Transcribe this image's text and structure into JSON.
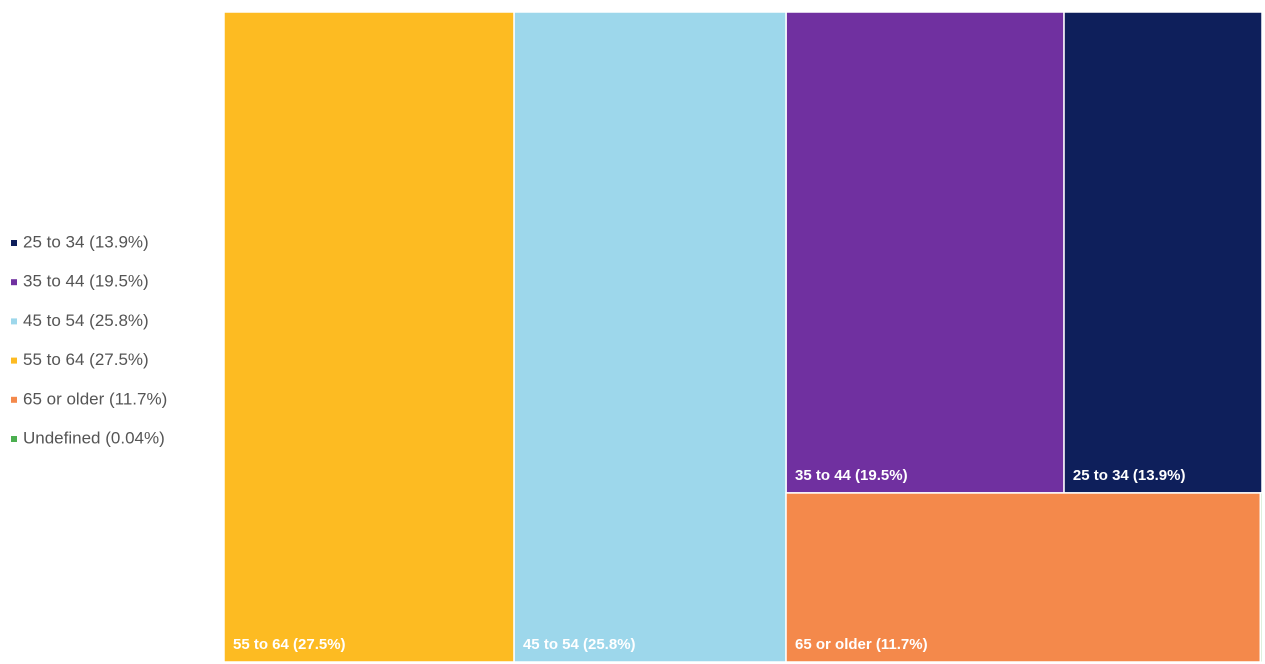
{
  "chart_data": {
    "type": "treemap",
    "categories": [
      "25 to 34 (13.9%)",
      "35 to 44 (19.5%)",
      "45 to 54 (25.8%)",
      "55 to 64 (27.5%)",
      "65 or older (11.7%)",
      "Undefined (0.04%)"
    ],
    "values": [
      13.9,
      19.5,
      25.8,
      27.5,
      11.7,
      0.04
    ],
    "colors": [
      "#0e1f5b",
      "#7030a0",
      "#9dd7eb",
      "#fdbb22",
      "#f4894b",
      "#4caf50"
    ],
    "legend": "left"
  }
}
